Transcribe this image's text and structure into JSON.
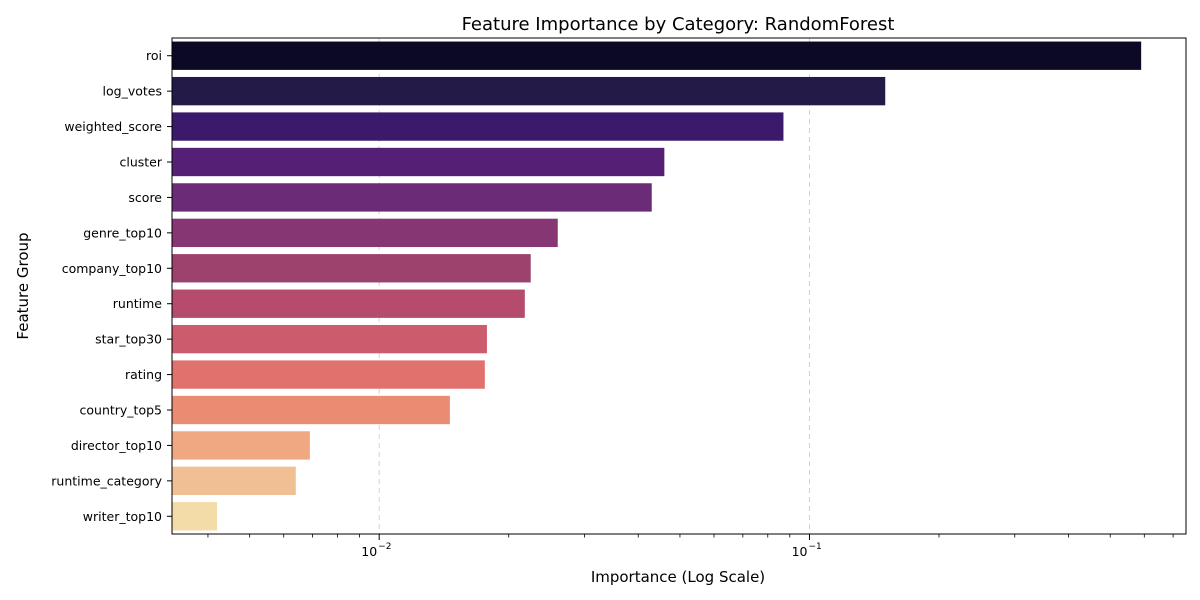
{
  "chart_data": {
    "type": "bar",
    "orientation": "horizontal",
    "title": "Feature Importance by Category: RandomForest",
    "xlabel": "Importance (Log Scale)",
    "ylabel": "Feature Group",
    "xscale": "log",
    "xlim": [
      0.0033,
      0.75
    ],
    "x_ticks": [
      {
        "value": 0.01,
        "base": "10",
        "exp": "−2"
      },
      {
        "value": 0.1,
        "base": "10",
        "exp": "−1"
      }
    ],
    "grid": "x-major dashed",
    "categories": [
      "roi",
      "log_votes",
      "weighted_score",
      "cluster",
      "score",
      "genre_top10",
      "company_top10",
      "runtime",
      "star_top30",
      "rating",
      "country_top5",
      "director_top10",
      "runtime_category",
      "writer_top10"
    ],
    "values": [
      0.59,
      0.15,
      0.087,
      0.046,
      0.043,
      0.026,
      0.0225,
      0.0218,
      0.0178,
      0.0176,
      0.0146,
      0.0069,
      0.0064,
      0.0042
    ],
    "colors": [
      "#0b0924",
      "#231a47",
      "#3b1a6b",
      "#551f76",
      "#6c2b76",
      "#853673",
      "#9d416d",
      "#b54b6d",
      "#cd5b6e",
      "#e0716d",
      "#e98c72",
      "#efa882",
      "#f0c094",
      "#f3dca8"
    ]
  }
}
